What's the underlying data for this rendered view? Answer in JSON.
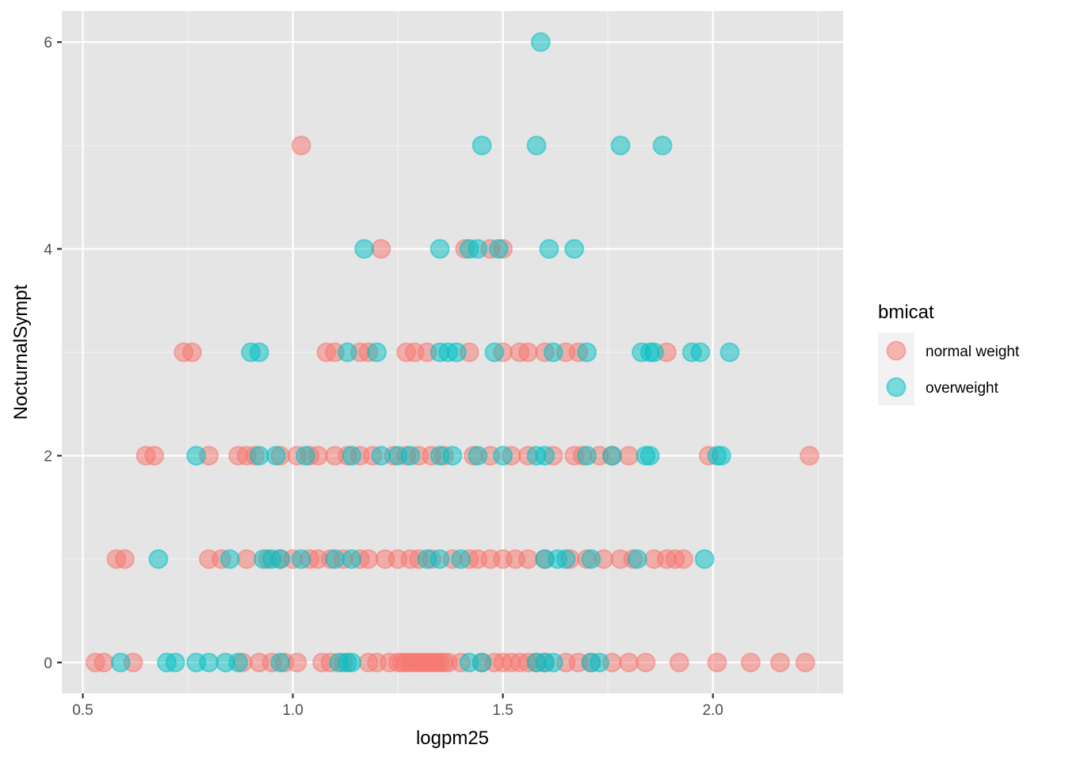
{
  "chart_data": {
    "type": "scatter",
    "title": "",
    "xlabel": "logpm25",
    "ylabel": "NocturnalSympt",
    "xlim": [
      0.45,
      2.31
    ],
    "ylim": [
      -0.3,
      6.3
    ],
    "x_ticks": [
      0.5,
      1.0,
      1.5,
      2.0
    ],
    "x_tick_labels": [
      "0.5",
      "1.0",
      "1.5",
      "2.0"
    ],
    "y_ticks": [
      0,
      2,
      4,
      6
    ],
    "y_tick_labels": [
      "0",
      "2",
      "4",
      "6"
    ],
    "grid": true,
    "legend": {
      "title": "bmicat",
      "placement": "right",
      "entries": [
        {
          "name": "normal weight",
          "color": "#F8766D"
        },
        {
          "name": "overweight",
          "color": "#00BFC4"
        }
      ]
    },
    "colors": {
      "panel_background": "#e5e5e5",
      "grid": "#ffffff"
    },
    "point_alpha": 0.5,
    "series": [
      {
        "name": "normal weight",
        "color": "#F8766D",
        "points": [
          [
            0.53,
            0
          ],
          [
            0.55,
            0
          ],
          [
            0.62,
            0
          ],
          [
            0.88,
            0
          ],
          [
            0.92,
            0
          ],
          [
            0.95,
            0
          ],
          [
            0.98,
            0
          ],
          [
            1.01,
            0
          ],
          [
            1.07,
            0
          ],
          [
            1.09,
            0
          ],
          [
            1.12,
            0
          ],
          [
            1.18,
            0
          ],
          [
            1.2,
            0
          ],
          [
            1.23,
            0
          ],
          [
            1.25,
            0
          ],
          [
            1.26,
            0
          ],
          [
            1.27,
            0
          ],
          [
            1.28,
            0
          ],
          [
            1.29,
            0
          ],
          [
            1.3,
            0
          ],
          [
            1.31,
            0
          ],
          [
            1.32,
            0
          ],
          [
            1.33,
            0
          ],
          [
            1.34,
            0
          ],
          [
            1.35,
            0
          ],
          [
            1.36,
            0
          ],
          [
            1.37,
            0
          ],
          [
            1.4,
            0
          ],
          [
            1.45,
            0
          ],
          [
            1.48,
            0
          ],
          [
            1.5,
            0
          ],
          [
            1.52,
            0
          ],
          [
            1.54,
            0
          ],
          [
            1.56,
            0
          ],
          [
            1.58,
            0
          ],
          [
            1.6,
            0
          ],
          [
            1.65,
            0
          ],
          [
            1.68,
            0
          ],
          [
            1.71,
            0
          ],
          [
            1.76,
            0
          ],
          [
            1.8,
            0
          ],
          [
            1.84,
            0
          ],
          [
            1.92,
            0
          ],
          [
            2.01,
            0
          ],
          [
            2.09,
            0
          ],
          [
            2.16,
            0
          ],
          [
            2.22,
            0
          ],
          [
            0.58,
            1
          ],
          [
            0.6,
            1
          ],
          [
            0.8,
            1
          ],
          [
            0.83,
            1
          ],
          [
            0.89,
            1
          ],
          [
            0.94,
            1
          ],
          [
            0.97,
            1
          ],
          [
            1.0,
            1
          ],
          [
            1.04,
            1
          ],
          [
            1.06,
            1
          ],
          [
            1.09,
            1
          ],
          [
            1.12,
            1
          ],
          [
            1.16,
            1
          ],
          [
            1.18,
            1
          ],
          [
            1.22,
            1
          ],
          [
            1.25,
            1
          ],
          [
            1.28,
            1
          ],
          [
            1.3,
            1
          ],
          [
            1.33,
            1
          ],
          [
            1.38,
            1
          ],
          [
            1.42,
            1
          ],
          [
            1.44,
            1
          ],
          [
            1.47,
            1
          ],
          [
            1.5,
            1
          ],
          [
            1.53,
            1
          ],
          [
            1.56,
            1
          ],
          [
            1.6,
            1
          ],
          [
            1.66,
            1
          ],
          [
            1.7,
            1
          ],
          [
            1.74,
            1
          ],
          [
            1.78,
            1
          ],
          [
            1.81,
            1
          ],
          [
            1.86,
            1
          ],
          [
            1.89,
            1
          ],
          [
            1.91,
            1
          ],
          [
            1.93,
            1
          ],
          [
            0.65,
            2
          ],
          [
            0.67,
            2
          ],
          [
            0.8,
            2
          ],
          [
            0.87,
            2
          ],
          [
            0.89,
            2
          ],
          [
            0.91,
            2
          ],
          [
            0.97,
            2
          ],
          [
            1.01,
            2
          ],
          [
            1.04,
            2
          ],
          [
            1.06,
            2
          ],
          [
            1.1,
            2
          ],
          [
            1.13,
            2
          ],
          [
            1.16,
            2
          ],
          [
            1.19,
            2
          ],
          [
            1.24,
            2
          ],
          [
            1.27,
            2
          ],
          [
            1.3,
            2
          ],
          [
            1.33,
            2
          ],
          [
            1.36,
            2
          ],
          [
            1.43,
            2
          ],
          [
            1.47,
            2
          ],
          [
            1.52,
            2
          ],
          [
            1.56,
            2
          ],
          [
            1.62,
            2
          ],
          [
            1.67,
            2
          ],
          [
            1.69,
            2
          ],
          [
            1.73,
            2
          ],
          [
            1.76,
            2
          ],
          [
            1.8,
            2
          ],
          [
            1.99,
            2
          ],
          [
            2.23,
            2
          ],
          [
            0.74,
            3
          ],
          [
            0.76,
            3
          ],
          [
            1.08,
            3
          ],
          [
            1.1,
            3
          ],
          [
            1.16,
            3
          ],
          [
            1.18,
            3
          ],
          [
            1.27,
            3
          ],
          [
            1.29,
            3
          ],
          [
            1.32,
            3
          ],
          [
            1.42,
            3
          ],
          [
            1.5,
            3
          ],
          [
            1.54,
            3
          ],
          [
            1.56,
            3
          ],
          [
            1.6,
            3
          ],
          [
            1.65,
            3
          ],
          [
            1.68,
            3
          ],
          [
            1.89,
            3
          ],
          [
            1.21,
            4
          ],
          [
            1.41,
            4
          ],
          [
            1.47,
            4
          ],
          [
            1.5,
            4
          ],
          [
            1.02,
            5
          ]
        ]
      },
      {
        "name": "overweight",
        "color": "#00BFC4",
        "points": [
          [
            0.59,
            0
          ],
          [
            0.7,
            0
          ],
          [
            0.72,
            0
          ],
          [
            0.77,
            0
          ],
          [
            0.8,
            0
          ],
          [
            0.84,
            0
          ],
          [
            0.87,
            0
          ],
          [
            0.97,
            0
          ],
          [
            1.11,
            0
          ],
          [
            1.13,
            0
          ],
          [
            1.14,
            0
          ],
          [
            1.42,
            0
          ],
          [
            1.45,
            0
          ],
          [
            1.58,
            0
          ],
          [
            1.6,
            0
          ],
          [
            1.62,
            0
          ],
          [
            1.71,
            0
          ],
          [
            1.73,
            0
          ],
          [
            0.68,
            1
          ],
          [
            0.85,
            1
          ],
          [
            0.93,
            1
          ],
          [
            0.95,
            1
          ],
          [
            0.97,
            1
          ],
          [
            1.02,
            1
          ],
          [
            1.1,
            1
          ],
          [
            1.14,
            1
          ],
          [
            1.32,
            1
          ],
          [
            1.35,
            1
          ],
          [
            1.4,
            1
          ],
          [
            1.6,
            1
          ],
          [
            1.63,
            1
          ],
          [
            1.65,
            1
          ],
          [
            1.71,
            1
          ],
          [
            1.82,
            1
          ],
          [
            1.98,
            1
          ],
          [
            0.77,
            2
          ],
          [
            0.92,
            2
          ],
          [
            0.96,
            2
          ],
          [
            1.03,
            2
          ],
          [
            1.14,
            2
          ],
          [
            1.21,
            2
          ],
          [
            1.25,
            2
          ],
          [
            1.28,
            2
          ],
          [
            1.35,
            2
          ],
          [
            1.38,
            2
          ],
          [
            1.44,
            2
          ],
          [
            1.5,
            2
          ],
          [
            1.58,
            2
          ],
          [
            1.6,
            2
          ],
          [
            1.7,
            2
          ],
          [
            1.76,
            2
          ],
          [
            1.84,
            2
          ],
          [
            1.85,
            2
          ],
          [
            2.01,
            2
          ],
          [
            2.02,
            2
          ],
          [
            0.9,
            3
          ],
          [
            0.92,
            3
          ],
          [
            1.13,
            3
          ],
          [
            1.2,
            3
          ],
          [
            1.35,
            3
          ],
          [
            1.37,
            3
          ],
          [
            1.39,
            3
          ],
          [
            1.48,
            3
          ],
          [
            1.62,
            3
          ],
          [
            1.7,
            3
          ],
          [
            1.83,
            3
          ],
          [
            1.85,
            3
          ],
          [
            1.86,
            3
          ],
          [
            1.95,
            3
          ],
          [
            1.97,
            3
          ],
          [
            2.04,
            3
          ],
          [
            1.17,
            4
          ],
          [
            1.35,
            4
          ],
          [
            1.42,
            4
          ],
          [
            1.44,
            4
          ],
          [
            1.49,
            4
          ],
          [
            1.61,
            4
          ],
          [
            1.67,
            4
          ],
          [
            1.45,
            5
          ],
          [
            1.58,
            5
          ],
          [
            1.78,
            5
          ],
          [
            1.88,
            5
          ],
          [
            1.59,
            6
          ]
        ]
      }
    ]
  }
}
